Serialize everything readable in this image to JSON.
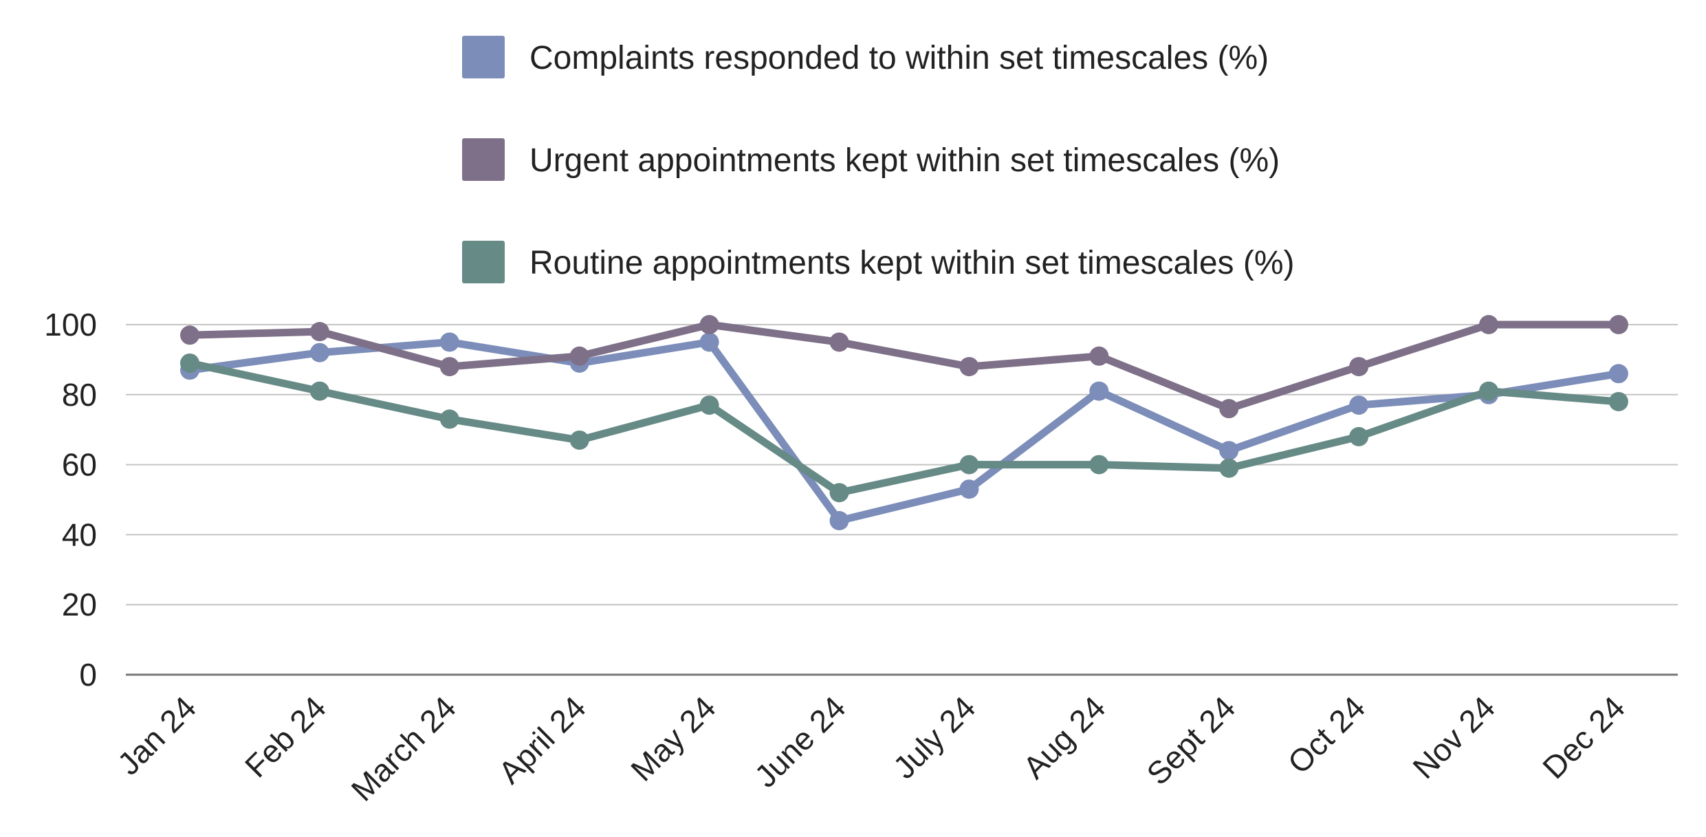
{
  "chart_data": {
    "type": "line",
    "title": "",
    "xlabel": "",
    "ylabel": "",
    "categories": [
      "Jan 24",
      "Feb 24",
      "March 24",
      "April 24",
      "May 24",
      "June 24",
      "July 24",
      "Aug 24",
      "Sept 24",
      "Oct 24",
      "Nov 24",
      "Dec 24"
    ],
    "y_ticks": [
      "0",
      "20",
      "40",
      "60",
      "80",
      "100"
    ],
    "ylim": [
      0,
      100
    ],
    "grid": true,
    "legend_position": "top",
    "series": [
      {
        "name": "Complaints responded to within set timescales (%)",
        "color": "#7b8db8",
        "values": [
          87,
          92,
          95,
          89,
          95,
          44,
          53,
          81,
          64,
          77,
          80,
          86
        ]
      },
      {
        "name": "Urgent appointments kept within set timescales (%)",
        "color": "#7e7088",
        "values": [
          97,
          98,
          88,
          91,
          100,
          95,
          88,
          91,
          76,
          88,
          100,
          100
        ]
      },
      {
        "name": "Routine appointments kept within set timescales (%)",
        "color": "#668a86",
        "values": [
          89,
          81,
          73,
          67,
          77,
          52,
          60,
          60,
          59,
          68,
          81,
          78
        ]
      }
    ]
  }
}
